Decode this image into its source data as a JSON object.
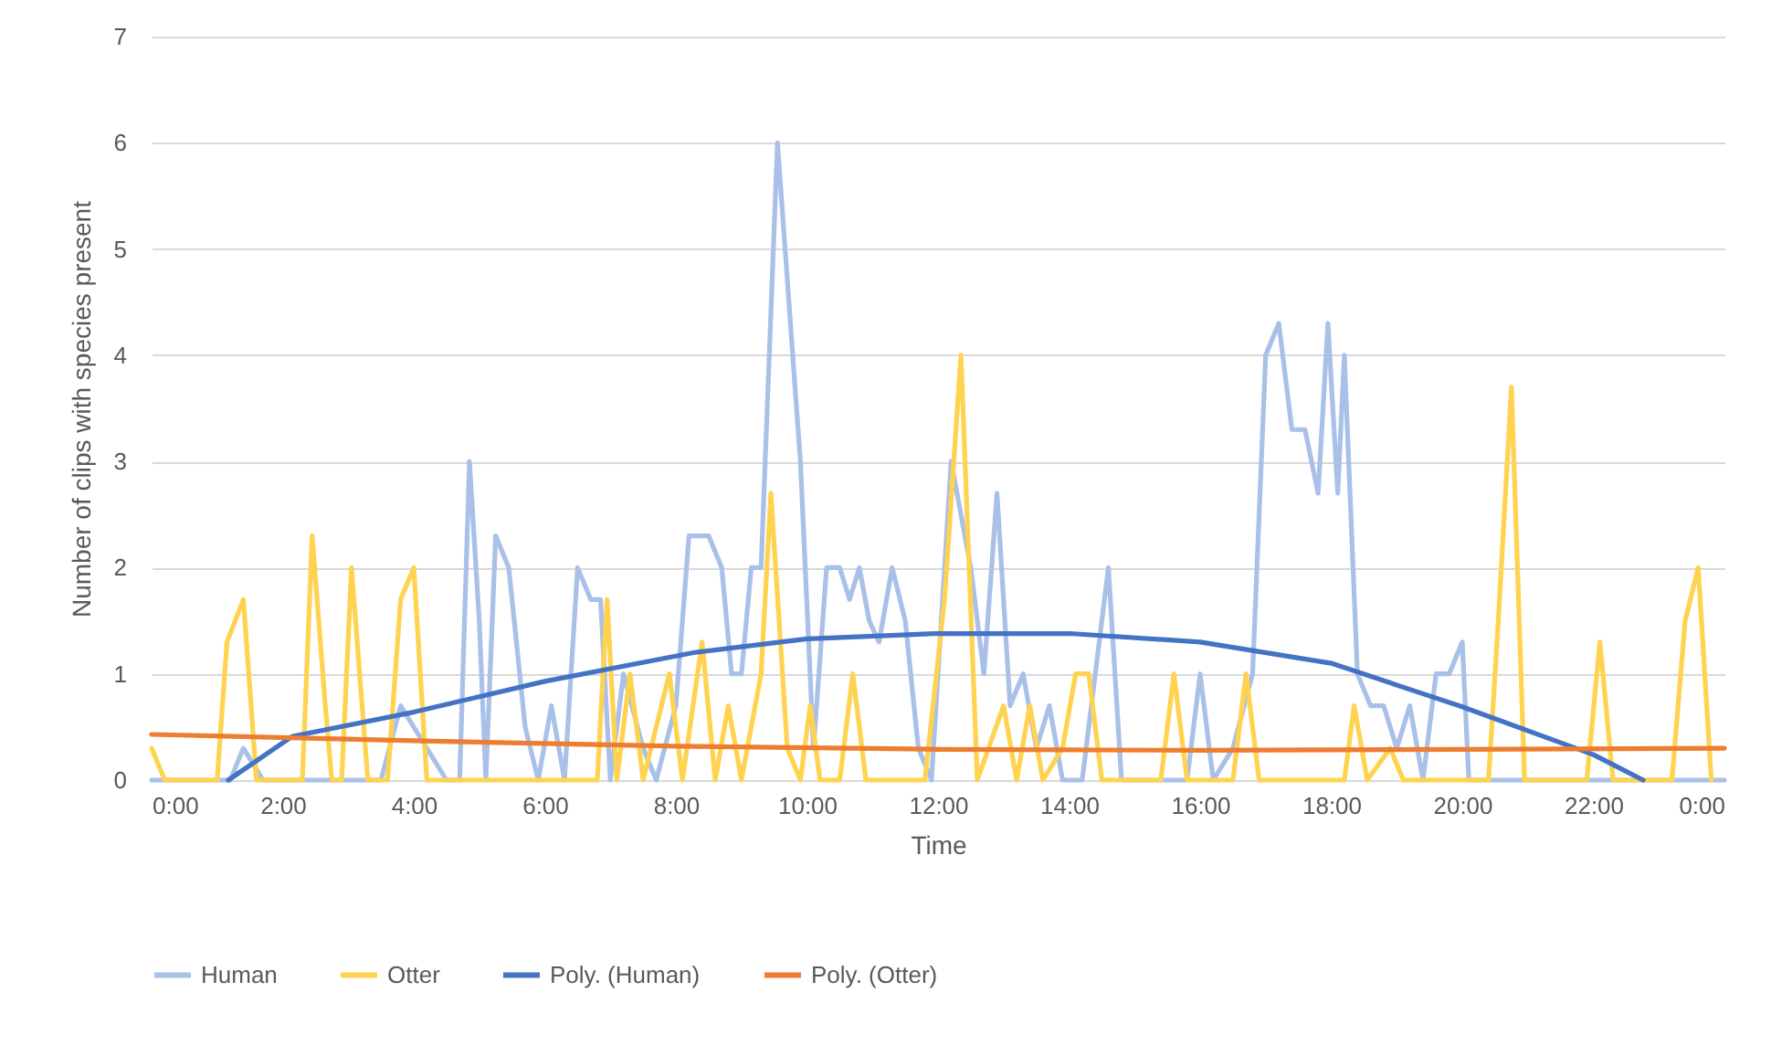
{
  "chart_data": {
    "type": "line",
    "xlabel": "Time",
    "ylabel": "Number of clips with species present",
    "xlim": [
      0,
      24
    ],
    "xticks": [
      {
        "value": 0,
        "label": "0:00"
      },
      {
        "value": 2,
        "label": "2:00"
      },
      {
        "value": 4,
        "label": "4:00"
      },
      {
        "value": 6,
        "label": "6:00"
      },
      {
        "value": 8,
        "label": "8:00"
      },
      {
        "value": 10,
        "label": "10:00"
      },
      {
        "value": 12,
        "label": "12:00"
      },
      {
        "value": 14,
        "label": "14:00"
      },
      {
        "value": 16,
        "label": "16:00"
      },
      {
        "value": 18,
        "label": "18:00"
      },
      {
        "value": 20,
        "label": "20:00"
      },
      {
        "value": 22,
        "label": "22:00"
      },
      {
        "value": 24,
        "label": "0:00"
      }
    ],
    "ylim": [
      0,
      7
    ],
    "yticks": [
      0,
      1,
      2,
      3,
      4,
      5,
      6,
      7
    ],
    "grid": "y",
    "legend": "bottom",
    "marker": "none",
    "series": [
      {
        "name": "Human",
        "color": "#a9c0e8",
        "x": [
          0,
          1.2,
          1.4,
          1.7,
          3.5,
          3.8,
          4.2,
          4.5,
          4.7,
          4.85,
          5.0,
          5.1,
          5.25,
          5.45,
          5.7,
          5.9,
          6.1,
          6.3,
          6.5,
          6.7,
          6.85,
          7.0,
          7.2,
          7.5,
          7.7,
          8.0,
          8.2,
          8.5,
          8.7,
          8.85,
          9.0,
          9.15,
          9.3,
          9.55,
          9.9,
          10.1,
          10.3,
          10.5,
          10.65,
          10.8,
          10.95,
          11.1,
          11.3,
          11.5,
          11.7,
          11.9,
          12.2,
          12.5,
          12.7,
          12.9,
          13.1,
          13.3,
          13.5,
          13.7,
          13.9,
          14.2,
          14.4,
          14.6,
          14.8,
          15.8,
          16.0,
          16.2,
          16.5,
          16.8,
          17.0,
          17.2,
          17.4,
          17.6,
          17.8,
          17.95,
          18.1,
          18.2,
          18.4,
          18.6,
          18.8,
          19.0,
          19.2,
          19.4,
          19.6,
          19.8,
          20.0,
          20.1,
          24
        ],
        "values": [
          0,
          0,
          0.3,
          0,
          0,
          0.7,
          0.3,
          0,
          0,
          3,
          1.5,
          0,
          2.3,
          2,
          0.5,
          0,
          0.7,
          0,
          2,
          1.7,
          1.7,
          0,
          1,
          0.3,
          0,
          0.7,
          2.3,
          2.3,
          2,
          1,
          1,
          2,
          2,
          6,
          3,
          0.3,
          2,
          2,
          1.7,
          2,
          1.5,
          1.3,
          2,
          1.5,
          0.3,
          0,
          3,
          2,
          1,
          2.7,
          0.7,
          1,
          0.3,
          0.7,
          0,
          0,
          1,
          2,
          0,
          0,
          1,
          0,
          0.3,
          1,
          4,
          4.3,
          3.3,
          3.3,
          2.7,
          4.3,
          2.7,
          4,
          1,
          0.7,
          0.7,
          0.3,
          0.7,
          0,
          1,
          1,
          1.3,
          0,
          0
        ]
      },
      {
        "name": "Otter",
        "color": "#ffd34f",
        "x": [
          0,
          0.2,
          1.0,
          1.15,
          1.4,
          1.6,
          2.3,
          2.45,
          2.65,
          2.75,
          2.9,
          3.05,
          3.3,
          3.6,
          3.8,
          4.0,
          4.2,
          6.8,
          6.95,
          7.1,
          7.3,
          7.5,
          7.9,
          8.1,
          8.4,
          8.6,
          8.8,
          9.0,
          9.3,
          9.45,
          9.7,
          9.9,
          10.05,
          10.2,
          10.5,
          10.7,
          10.9,
          11.8,
          12.1,
          12.35,
          12.6,
          13.0,
          13.2,
          13.4,
          13.6,
          13.9,
          14.1,
          14.3,
          14.5,
          15.4,
          15.6,
          15.8,
          16.5,
          16.7,
          16.9,
          18.2,
          18.35,
          18.55,
          18.9,
          19.1,
          20.4,
          20.55,
          20.75,
          20.95,
          21.9,
          22.1,
          22.3,
          23.2,
          23.4,
          23.6,
          23.8
        ],
        "values": [
          0.3,
          0,
          0,
          1.3,
          1.7,
          0,
          0,
          2.3,
          0.7,
          0,
          0,
          2,
          0,
          0,
          1.7,
          2,
          0,
          0,
          1.7,
          0,
          1,
          0,
          1,
          0,
          1.3,
          0,
          0.7,
          0,
          1,
          2.7,
          0.3,
          0,
          0.7,
          0,
          0,
          1,
          0,
          0,
          1.7,
          4,
          0,
          0.7,
          0,
          0.7,
          0,
          0.3,
          1,
          1,
          0,
          0,
          1,
          0,
          0,
          1,
          0,
          0,
          0.7,
          0,
          0.3,
          0,
          0,
          1.5,
          3.7,
          0,
          0,
          1.3,
          0,
          0,
          1.5,
          2,
          0
        ]
      },
      {
        "name": "Poly. (Human)",
        "color": "#4472c4",
        "x": [
          1.17,
          2.14,
          4,
          6,
          8.27,
          10,
          12,
          14,
          16,
          18,
          20,
          22,
          22.76
        ],
        "values": [
          0,
          0.41,
          0.64,
          0.93,
          1.2,
          1.33,
          1.38,
          1.38,
          1.3,
          1.1,
          0.69,
          0.24,
          0
        ]
      },
      {
        "name": "Poly. (Otter)",
        "color": "#ed7d31",
        "x": [
          0,
          4,
          8,
          12,
          16,
          20,
          24
        ],
        "values": [
          0.43,
          0.37,
          0.32,
          0.29,
          0.28,
          0.29,
          0.3
        ]
      }
    ]
  }
}
